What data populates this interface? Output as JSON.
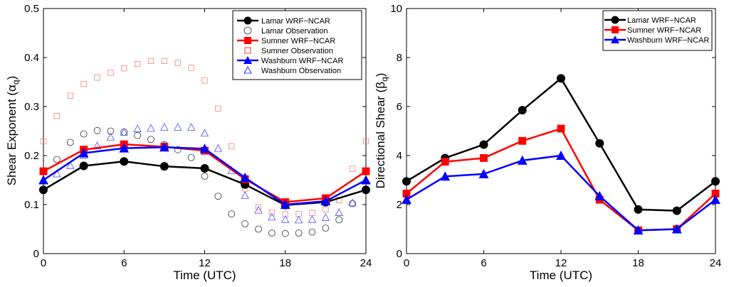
{
  "chart_data": [
    {
      "type": "line",
      "title": "",
      "xlabel": "Time (UTC)",
      "ylabel_main": "Shear Exponent (",
      "ylabel_greek": "α",
      "ylabel_sub": "q",
      "ylabel_end": ")",
      "xlim": [
        0,
        24
      ],
      "ylim": [
        0,
        0.5
      ],
      "xticks": [
        0,
        6,
        12,
        18,
        24
      ],
      "xtick_labels": [
        "0",
        "6",
        "12",
        "18",
        "24"
      ],
      "yticks": [
        0,
        0.1,
        0.2,
        0.3,
        0.4,
        0.5
      ],
      "ytick_labels": [
        "0",
        "0.1",
        "0.2",
        "0.3",
        "0.4",
        "0.5"
      ],
      "legend_position": "top-right",
      "series": [
        {
          "name": "Lamar WRF−NCAR",
          "style": "line-marker",
          "marker": "circle",
          "color": "#000000",
          "x": [
            0,
            3,
            6,
            9,
            12,
            15,
            18,
            21,
            24
          ],
          "y": [
            0.13,
            0.179,
            0.188,
            0.178,
            0.174,
            0.141,
            0.099,
            0.105,
            0.13
          ]
        },
        {
          "name": "Lamar Observation",
          "style": "marker-only",
          "marker": "circle",
          "color": "#333333",
          "x": [
            0,
            1,
            2,
            3,
            4,
            5,
            6,
            7,
            8,
            9,
            10,
            11,
            12,
            13,
            14,
            15,
            16,
            17,
            18,
            19,
            20,
            21,
            22,
            23
          ],
          "y": [
            0.13,
            0.192,
            0.227,
            0.244,
            0.251,
            0.25,
            0.248,
            0.241,
            0.233,
            0.222,
            0.212,
            0.196,
            0.158,
            0.117,
            0.081,
            0.061,
            0.05,
            0.042,
            0.041,
            0.042,
            0.044,
            0.052,
            0.069,
            0.102
          ]
        },
        {
          "name": "Sumner WRF−NCAR",
          "style": "line-marker",
          "marker": "square",
          "color": "#ff0000",
          "x": [
            0,
            3,
            6,
            9,
            12,
            15,
            18,
            21,
            24
          ],
          "y": [
            0.168,
            0.212,
            0.223,
            0.218,
            0.21,
            0.152,
            0.105,
            0.113,
            0.168
          ]
        },
        {
          "name": "Sumner Observation",
          "style": "marker-only",
          "marker": "square",
          "color": "#ff0000",
          "x": [
            0,
            1,
            2,
            3,
            4,
            5,
            6,
            7,
            8,
            9,
            10,
            11,
            12,
            13,
            14,
            15,
            16,
            17,
            18,
            19,
            20,
            21,
            22,
            23,
            24
          ],
          "y": [
            0.229,
            0.281,
            0.322,
            0.346,
            0.359,
            0.369,
            0.378,
            0.387,
            0.393,
            0.393,
            0.389,
            0.379,
            0.353,
            0.296,
            0.219,
            0.133,
            0.095,
            0.084,
            0.08,
            0.081,
            0.083,
            0.09,
            0.109,
            0.173,
            0.229
          ]
        },
        {
          "name": "Washburn WRF−NCAR",
          "style": "line-marker",
          "marker": "triangle",
          "color": "#0000ff",
          "x": [
            0,
            3,
            6,
            9,
            12,
            15,
            18,
            21,
            24
          ],
          "y": [
            0.15,
            0.205,
            0.215,
            0.217,
            0.214,
            0.155,
            0.1,
            0.107,
            0.15
          ]
        },
        {
          "name": "Washburn Observation",
          "style": "marker-only",
          "marker": "triangle",
          "color": "#0000ff",
          "x": [
            0,
            1,
            2,
            3,
            4,
            5,
            6,
            7,
            8,
            9,
            10,
            11,
            12,
            13,
            14,
            15,
            16,
            17,
            18,
            19,
            20,
            21,
            22,
            23
          ],
          "y": [
            0.15,
            0.163,
            0.18,
            0.201,
            0.22,
            0.238,
            0.248,
            0.255,
            0.256,
            0.258,
            0.258,
            0.258,
            0.246,
            0.215,
            0.17,
            0.119,
            0.089,
            0.075,
            0.07,
            0.069,
            0.07,
            0.074,
            0.084,
            0.104
          ]
        }
      ]
    },
    {
      "type": "line",
      "title": "",
      "xlabel": "Time (UTC)",
      "ylabel_main": "Directional Shear (",
      "ylabel_greek": "β",
      "ylabel_sub": "q",
      "ylabel_end": ")",
      "xlim": [
        0,
        24
      ],
      "ylim": [
        0,
        10
      ],
      "xticks": [
        0,
        6,
        12,
        18,
        24
      ],
      "xtick_labels": [
        "0",
        "6",
        "12",
        "18",
        "24"
      ],
      "yticks": [
        0,
        2,
        4,
        6,
        8,
        10
      ],
      "ytick_labels": [
        "0",
        "2",
        "4",
        "6",
        "8",
        "10"
      ],
      "legend_position": "top-right",
      "series": [
        {
          "name": "Lamar WRF−NCAR",
          "style": "line-marker",
          "marker": "circle",
          "color": "#000000",
          "x": [
            0,
            3,
            6,
            9,
            12,
            15,
            18,
            21,
            24
          ],
          "y": [
            2.95,
            3.9,
            4.45,
            5.85,
            7.15,
            4.5,
            1.8,
            1.75,
            2.95
          ]
        },
        {
          "name": "Sumner WRF−NCAR",
          "style": "line-marker",
          "marker": "square",
          "color": "#ff0000",
          "x": [
            0,
            3,
            6,
            9,
            12,
            15,
            18,
            21,
            24
          ],
          "y": [
            2.45,
            3.75,
            3.9,
            4.6,
            5.1,
            2.2,
            0.95,
            1.0,
            2.45
          ]
        },
        {
          "name": "Washburn WRF−NCAR",
          "style": "line-marker",
          "marker": "triangle",
          "color": "#0000ff",
          "x": [
            0,
            3,
            6,
            9,
            12,
            15,
            18,
            21,
            24
          ],
          "y": [
            2.2,
            3.15,
            3.25,
            3.8,
            4.0,
            2.35,
            0.95,
            1.0,
            2.2
          ]
        }
      ]
    }
  ]
}
